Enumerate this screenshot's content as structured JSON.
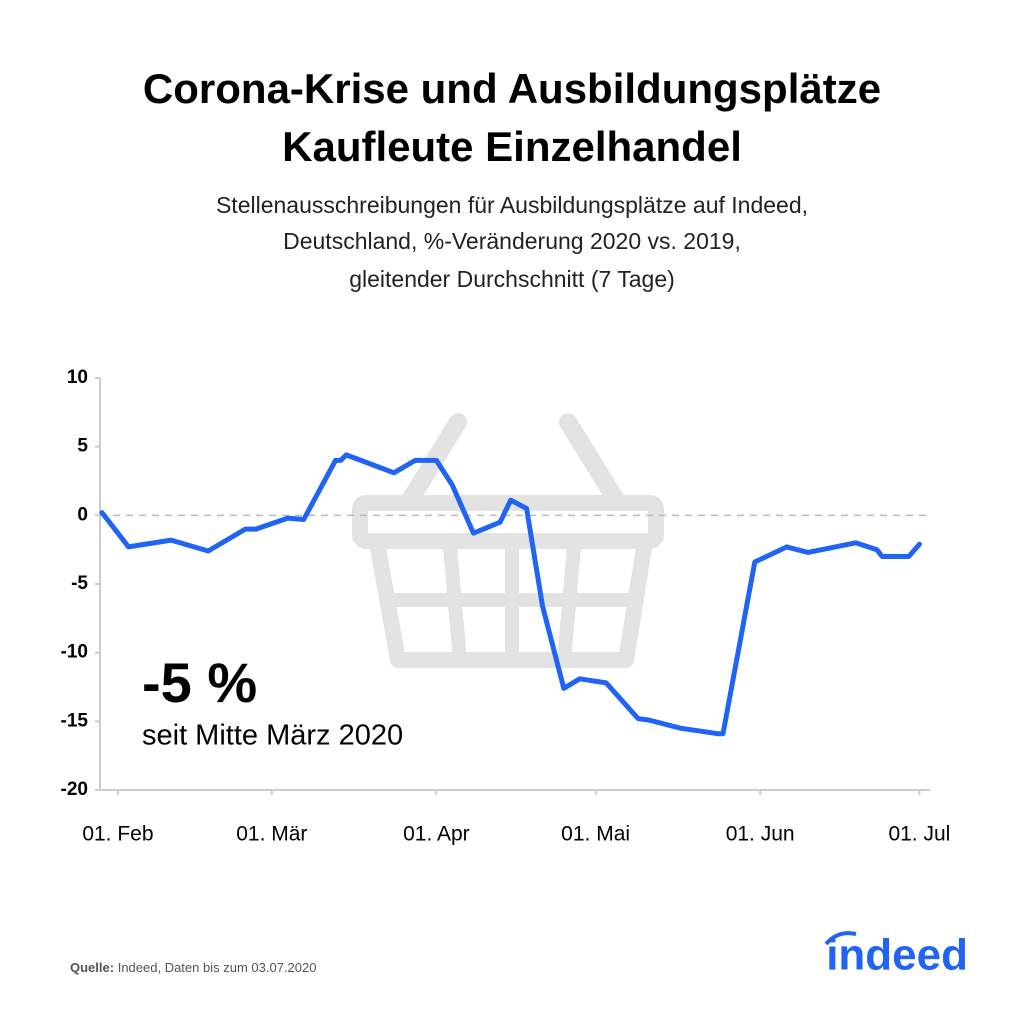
{
  "chart_data": {
    "type": "line",
    "title": [
      "Corona-Krise und Ausbildungsplätze",
      "Kaufleute Einzelhandel"
    ],
    "subtitle": [
      "Stellenausschreibungen für Ausbildungsplätze auf Indeed,",
      "Deutschland, %-Veränderung 2020 vs. 2019,",
      "gleitender Durchschnitt (7 Tage)"
    ],
    "annotation": {
      "value_text": "-5 %",
      "text": "seit Mitte März 2020"
    },
    "source": {
      "label": "Quelle:",
      "text": "Indeed, Daten bis zum 03.07.2020"
    },
    "logo": "indeed",
    "x": [
      "01-29",
      "02-03",
      "02-11",
      "02-18",
      "02-25",
      "02-27",
      "03-04",
      "03-07",
      "03-13",
      "03-14",
      "03-15",
      "03-24",
      "03-28",
      "04-01",
      "04-04",
      "04-08",
      "04-13",
      "04-15",
      "04-18",
      "04-21",
      "04-25",
      "04-28",
      "05-03",
      "05-09",
      "05-11",
      "05-17",
      "05-24",
      "05-25",
      "05-31",
      "06-06",
      "06-10",
      "06-19",
      "06-23",
      "06-24",
      "06-29",
      "07-01"
    ],
    "series": [
      {
        "color": "#2164f3",
        "values": [
          0.2,
          -2.3,
          -1.8,
          -2.6,
          -1.0,
          -1.0,
          -0.2,
          -0.3,
          4.0,
          4.0,
          4.4,
          3.1,
          4.0,
          4.0,
          2.2,
          -1.3,
          -0.5,
          1.1,
          0.5,
          -6.6,
          -12.6,
          -11.9,
          -12.2,
          -14.8,
          -14.9,
          -15.5,
          -15.9,
          -15.9,
          -3.4,
          -2.3,
          -2.7,
          -2.0,
          -2.5,
          -3.0,
          -3.0,
          -2.1
        ]
      }
    ],
    "xlim": [
      "01-29",
      "07-03"
    ],
    "xticks": [
      {
        "value": "02-01",
        "label": "01. Feb"
      },
      {
        "value": "03-01",
        "label": "01. Mär"
      },
      {
        "value": "04-01",
        "label": "01. Apr"
      },
      {
        "value": "05-01",
        "label": "01. Mai"
      },
      {
        "value": "06-01",
        "label": "01. Jun"
      },
      {
        "value": "07-01",
        "label": "01. Jul"
      }
    ],
    "ylim": [
      -20,
      10
    ],
    "yticks": [
      -20,
      -15,
      -10,
      -5,
      0,
      5,
      10
    ],
    "reference_line": 0
  }
}
